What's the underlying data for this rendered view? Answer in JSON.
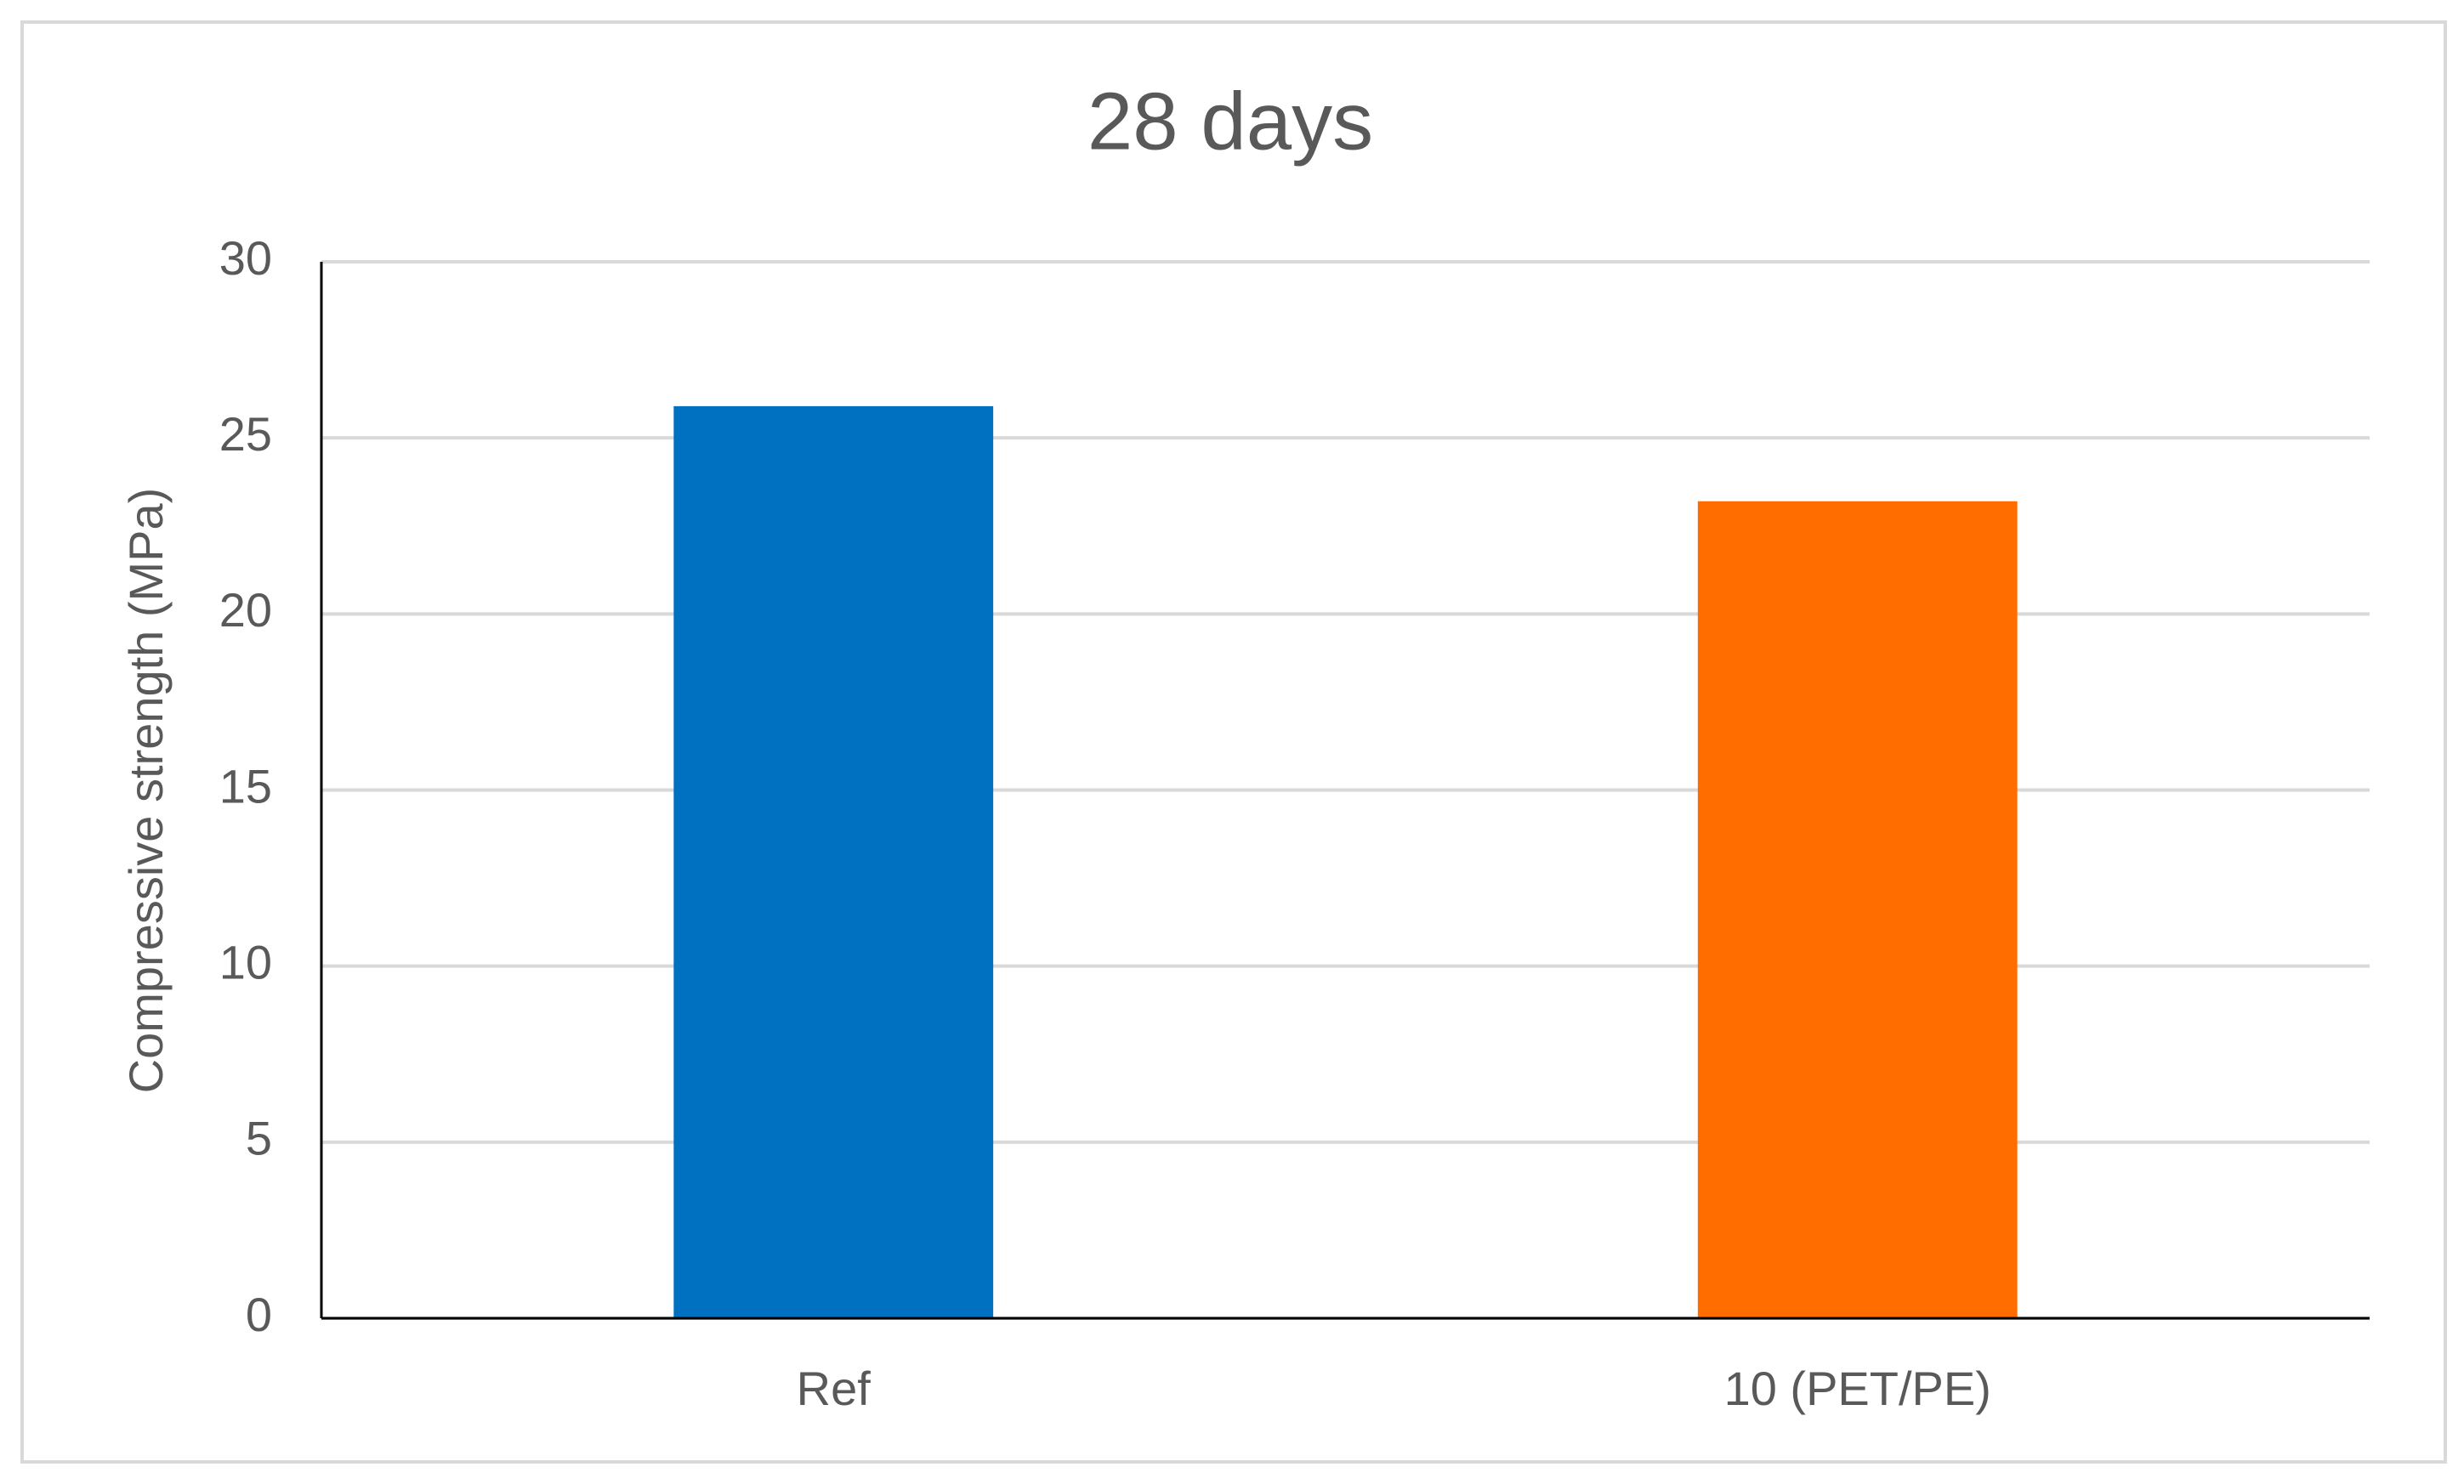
{
  "chart_data": {
    "type": "bar",
    "title": "28 days",
    "y_label": "Compressive strength (MPa)",
    "categories": [
      "Ref",
      "10 (PET/PE)"
    ],
    "values": [
      25.9,
      23.2
    ],
    "colors": [
      "#0070c0",
      "#ff6d00"
    ],
    "ylim": [
      0,
      30
    ],
    "yticks": [
      0,
      5,
      10,
      15,
      20,
      25,
      30
    ],
    "grid": true
  }
}
